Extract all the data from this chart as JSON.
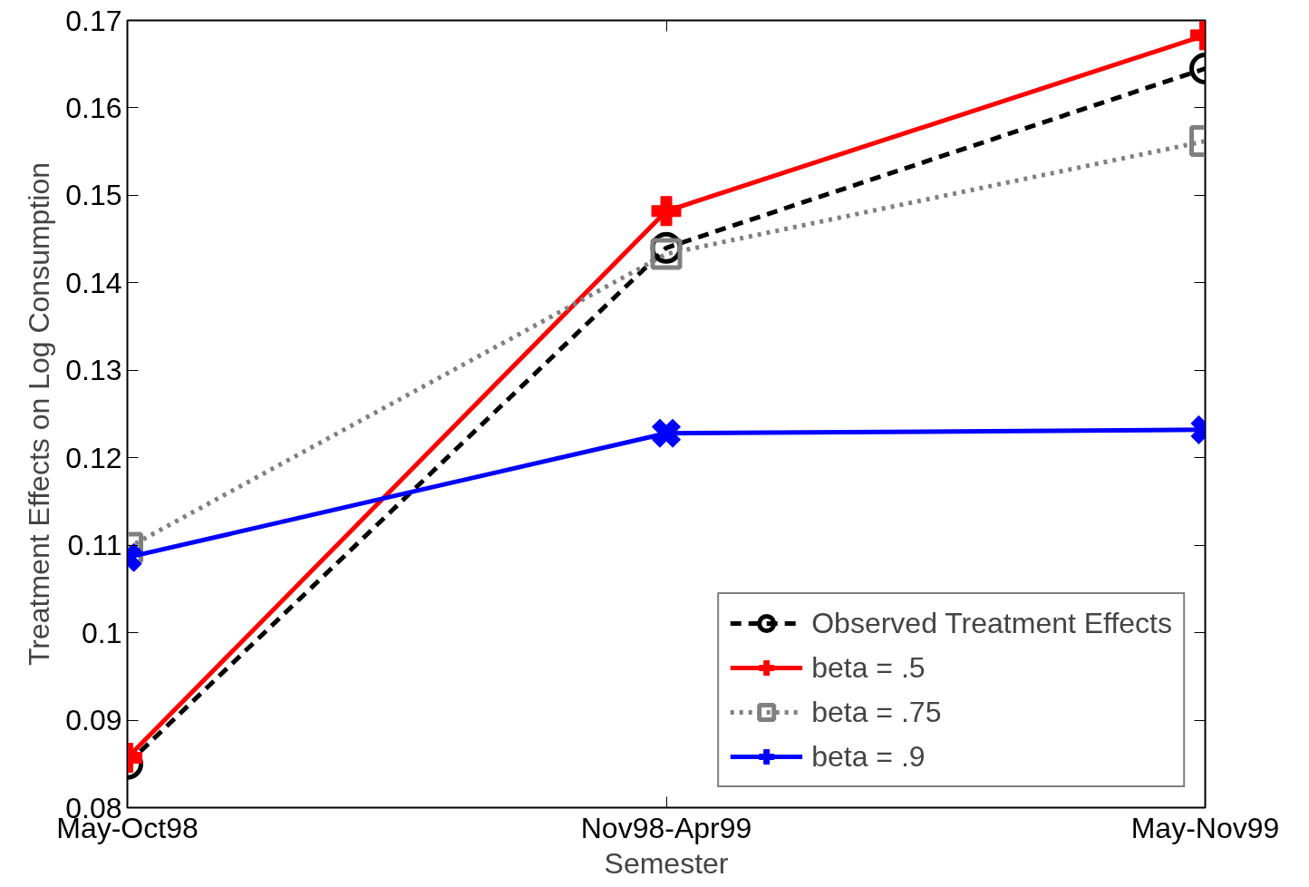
{
  "chart_data": {
    "type": "line",
    "xlabel": "Semester",
    "ylabel": "Treatment Effects on Log Consumption",
    "categories": [
      "May-Oct98",
      "Nov98-Apr99",
      "May-Nov99"
    ],
    "ylim": [
      0.08,
      0.17
    ],
    "yticks": [
      0.08,
      0.09,
      {
        "value": 0.1,
        "label": "0.1"
      },
      0.11,
      0.12,
      0.13,
      0.14,
      0.15,
      0.16,
      0.17
    ],
    "grid": false,
    "legend": "bottom right",
    "series": [
      {
        "name": "Observed Treatment Effects",
        "color": "#000000",
        "values": [
          0.085,
          0.144,
          0.1645
        ],
        "marker": "circle",
        "line_style": "dashed"
      },
      {
        "name": "beta = .5",
        "color": "#ff0000",
        "values": [
          0.0857,
          0.1482,
          0.1683
        ],
        "marker": "cross",
        "line_style": "solid"
      },
      {
        "name": "beta = .75",
        "color": "#808080",
        "values": [
          0.1097,
          0.1433,
          0.1562
        ],
        "marker": "square",
        "line_style": "dotted"
      },
      {
        "name": "beta = .9",
        "color": "#0000ff",
        "values": [
          0.1086,
          0.1228,
          0.1232
        ],
        "marker": "x",
        "line_style": "solid"
      }
    ]
  }
}
